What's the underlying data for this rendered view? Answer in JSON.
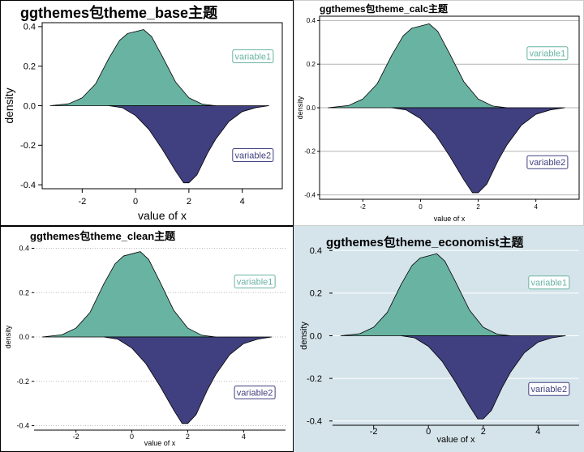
{
  "chart_data": [
    {
      "type": "area",
      "title": "ggthemes包theme_base主题",
      "xlabel": "value of x",
      "ylabel": "density",
      "xlim": [
        -3.5,
        5.5
      ],
      "ylim": [
        -0.42,
        0.42
      ],
      "xticks": [
        "-2",
        "0",
        "2",
        "4"
      ],
      "xtick_values": [
        -2,
        0,
        2,
        4
      ],
      "yticks": [
        "0.4",
        "0.2",
        "0.0",
        "-0.2",
        "-0.4"
      ],
      "ytick_values": [
        0.4,
        0.2,
        0.0,
        -0.2,
        -0.4
      ],
      "grid": false,
      "legend": "annotation-labels",
      "annotations": [
        {
          "text": "variable1",
          "x": 4.4,
          "y": 0.25,
          "color": "#69b3a2"
        },
        {
          "text": "variable2",
          "x": 4.4,
          "y": -0.25,
          "color": "#404080"
        }
      ],
      "series": [
        {
          "name": "variable1",
          "color": "#69b3a2",
          "x": [
            -3.2,
            -2.5,
            -2.0,
            -1.5,
            -1.0,
            -0.6,
            -0.3,
            0.0,
            0.3,
            0.6,
            1.0,
            1.5,
            2.0,
            2.5,
            3.0
          ],
          "y": [
            0.0,
            0.01,
            0.04,
            0.11,
            0.24,
            0.33,
            0.365,
            0.375,
            0.385,
            0.35,
            0.25,
            0.12,
            0.04,
            0.008,
            0.0
          ]
        },
        {
          "name": "variable2",
          "color": "#404080",
          "x": [
            -1.0,
            -0.5,
            0.0,
            0.5,
            1.0,
            1.5,
            1.8,
            2.0,
            2.3,
            2.7,
            3.0,
            3.5,
            4.0,
            4.5,
            5.0
          ],
          "y": [
            0.0,
            -0.01,
            -0.05,
            -0.12,
            -0.22,
            -0.33,
            -0.39,
            -0.39,
            -0.35,
            -0.24,
            -0.17,
            -0.08,
            -0.03,
            -0.01,
            0.0
          ]
        }
      ]
    },
    {
      "type": "area",
      "title": "ggthemes包theme_calc主题",
      "xlabel": "value of x",
      "ylabel": "density",
      "xlim": [
        -3.5,
        5.5
      ],
      "ylim": [
        -0.42,
        0.42
      ],
      "xticks": [
        "-2",
        "0",
        "2",
        "4"
      ],
      "xtick_values": [
        -2,
        0,
        2,
        4
      ],
      "yticks": [
        "0.4",
        "0.2",
        "0.0",
        "-0.2",
        "-0.4"
      ],
      "ytick_values": [
        0.4,
        0.2,
        0.0,
        -0.2,
        -0.4
      ],
      "grid": true,
      "legend": "annotation-labels",
      "annotations": [
        {
          "text": "variable1",
          "x": 4.4,
          "y": 0.25,
          "color": "#69b3a2"
        },
        {
          "text": "variable2",
          "x": 4.4,
          "y": -0.25,
          "color": "#404080"
        }
      ],
      "series": [
        {
          "name": "variable1",
          "color": "#69b3a2",
          "x": [
            -3.2,
            -2.5,
            -2.0,
            -1.5,
            -1.0,
            -0.6,
            -0.3,
            0.0,
            0.3,
            0.6,
            1.0,
            1.5,
            2.0,
            2.5,
            3.0
          ],
          "y": [
            0.0,
            0.01,
            0.04,
            0.11,
            0.24,
            0.33,
            0.365,
            0.375,
            0.385,
            0.35,
            0.25,
            0.12,
            0.04,
            0.008,
            0.0
          ]
        },
        {
          "name": "variable2",
          "color": "#404080",
          "x": [
            -1.0,
            -0.5,
            0.0,
            0.5,
            1.0,
            1.5,
            1.8,
            2.0,
            2.3,
            2.7,
            3.0,
            3.5,
            4.0,
            4.5,
            5.0
          ],
          "y": [
            0.0,
            -0.01,
            -0.05,
            -0.12,
            -0.22,
            -0.33,
            -0.39,
            -0.39,
            -0.35,
            -0.24,
            -0.17,
            -0.08,
            -0.03,
            -0.01,
            0.0
          ]
        }
      ]
    },
    {
      "type": "area",
      "title": "ggthemes包theme_clean主题",
      "xlabel": "value of x",
      "ylabel": "density",
      "xlim": [
        -3.5,
        5.5
      ],
      "ylim": [
        -0.42,
        0.42
      ],
      "xticks": [
        "-2",
        "0",
        "2",
        "4"
      ],
      "xtick_values": [
        -2,
        0,
        2,
        4
      ],
      "yticks": [
        "0.4",
        "0.2",
        "0.0",
        "-0.2",
        "-0.4"
      ],
      "ytick_values": [
        0.4,
        0.2,
        0.0,
        -0.2,
        -0.4
      ],
      "grid": true,
      "legend": "annotation-labels",
      "annotations": [
        {
          "text": "variable1",
          "x": 4.4,
          "y": 0.25,
          "color": "#69b3a2"
        },
        {
          "text": "variable2",
          "x": 4.4,
          "y": -0.25,
          "color": "#404080"
        }
      ],
      "series": [
        {
          "name": "variable1",
          "color": "#69b3a2",
          "x": [
            -3.2,
            -2.5,
            -2.0,
            -1.5,
            -1.0,
            -0.6,
            -0.3,
            0.0,
            0.3,
            0.6,
            1.0,
            1.5,
            2.0,
            2.5,
            3.0
          ],
          "y": [
            0.0,
            0.01,
            0.04,
            0.11,
            0.24,
            0.33,
            0.365,
            0.375,
            0.385,
            0.35,
            0.25,
            0.12,
            0.04,
            0.008,
            0.0
          ]
        },
        {
          "name": "variable2",
          "color": "#404080",
          "x": [
            -1.0,
            -0.5,
            0.0,
            0.5,
            1.0,
            1.5,
            1.8,
            2.0,
            2.3,
            2.7,
            3.0,
            3.5,
            4.0,
            4.5,
            5.0
          ],
          "y": [
            0.0,
            -0.01,
            -0.05,
            -0.12,
            -0.22,
            -0.33,
            -0.39,
            -0.39,
            -0.35,
            -0.24,
            -0.17,
            -0.08,
            -0.03,
            -0.01,
            0.0
          ]
        }
      ]
    },
    {
      "type": "area",
      "title": "ggthemes包theme_economist主题",
      "xlabel": "value of x",
      "ylabel": "density",
      "xlim": [
        -3.5,
        5.5
      ],
      "ylim": [
        -0.42,
        0.42
      ],
      "xticks": [
        "-2",
        "0",
        "2",
        "4"
      ],
      "xtick_values": [
        -2,
        0,
        2,
        4
      ],
      "yticks": [
        "0.4",
        "0.2",
        "0.0",
        "-0.2",
        "-0.4"
      ],
      "ytick_values": [
        0.4,
        0.2,
        0.0,
        -0.2,
        -0.4
      ],
      "grid": true,
      "legend": "annotation-labels",
      "annotations": [
        {
          "text": "variable1",
          "x": 4.4,
          "y": 0.25,
          "color": "#69b3a2"
        },
        {
          "text": "variable2",
          "x": 4.4,
          "y": -0.25,
          "color": "#404080"
        }
      ],
      "series": [
        {
          "name": "variable1",
          "color": "#69b3a2",
          "x": [
            -3.2,
            -2.5,
            -2.0,
            -1.5,
            -1.0,
            -0.6,
            -0.3,
            0.0,
            0.3,
            0.6,
            1.0,
            1.5,
            2.0,
            2.5,
            3.0
          ],
          "y": [
            0.0,
            0.01,
            0.04,
            0.11,
            0.24,
            0.33,
            0.365,
            0.375,
            0.385,
            0.35,
            0.25,
            0.12,
            0.04,
            0.008,
            0.0
          ]
        },
        {
          "name": "variable2",
          "color": "#404080",
          "x": [
            -1.0,
            -0.5,
            0.0,
            0.5,
            1.0,
            1.5,
            1.8,
            2.0,
            2.3,
            2.7,
            3.0,
            3.5,
            4.0,
            4.5,
            5.0
          ],
          "y": [
            0.0,
            -0.01,
            -0.05,
            -0.12,
            -0.22,
            -0.33,
            -0.39,
            -0.39,
            -0.35,
            -0.24,
            -0.17,
            -0.08,
            -0.03,
            -0.01,
            0.0
          ]
        }
      ]
    }
  ]
}
